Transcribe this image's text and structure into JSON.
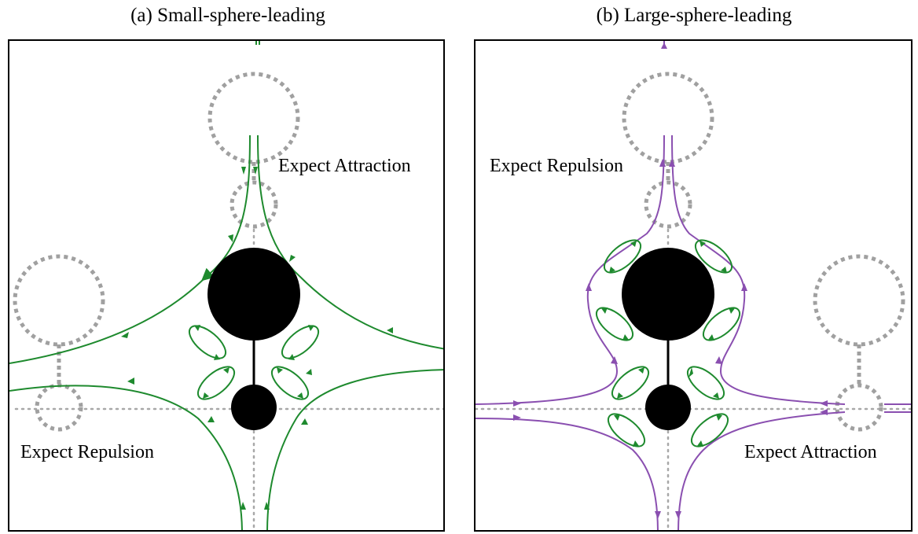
{
  "colors": {
    "green_flow": "#1e8a2e",
    "purple_flow": "#8a4fb0",
    "sphere": "#000000",
    "ghost": "#a0a0a0"
  },
  "panels": [
    {
      "title": "(a) Small-sphere-leading",
      "label_attraction": "Expect Attraction",
      "label_repulsion": "Expect Repulsion"
    },
    {
      "title": "(b) Large-sphere-leading",
      "label_repulsion": "Expect Repulsion",
      "label_attraction": "Expect Attraction"
    }
  ]
}
